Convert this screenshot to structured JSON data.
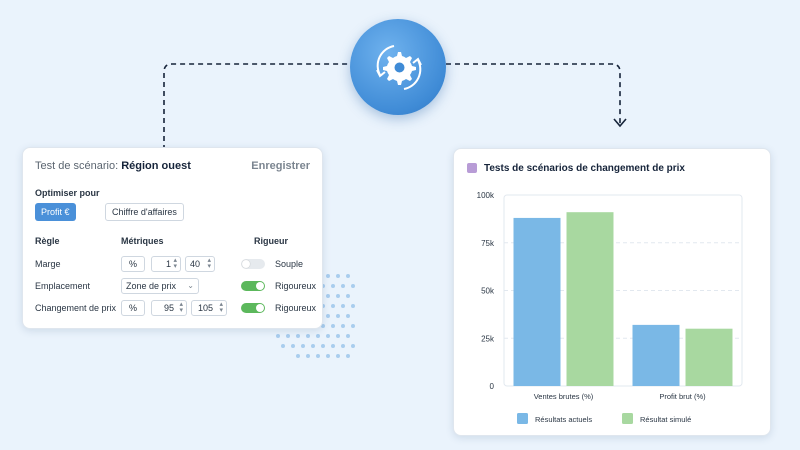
{
  "scenario": {
    "label": "Test de scénario:",
    "name": "Région ouest",
    "save_label": "Enregistrer"
  },
  "optimize": {
    "label": "Optimiser pour",
    "options": [
      {
        "label": "Profit €",
        "selected": true
      },
      {
        "label": "Chiffre d'affaires",
        "selected": false
      }
    ]
  },
  "rules_table": {
    "headers": {
      "rule": "Règle",
      "metrics": "Métriques",
      "rigor": "Rigueur"
    },
    "rows": [
      {
        "rule": "Marge",
        "unit": "%",
        "val1": "1",
        "val2": "40",
        "rigor_on": false,
        "rigor": "Souple"
      },
      {
        "rule": "Emplacement",
        "select": "Zone de prix",
        "rigor_on": true,
        "rigor": "Rigoureux"
      },
      {
        "rule": "Changement de prix",
        "unit": "%",
        "val1": "95",
        "val2": "105",
        "rigor_on": true,
        "rigor": "Rigoureux"
      }
    ]
  },
  "icons": {
    "center": "gear-refresh-icon"
  },
  "colors": {
    "accent": "#4a90d9",
    "current": "#7ab8e6",
    "simulated": "#a8d8a0",
    "toggle_on": "#5cb85c"
  },
  "chart_data": {
    "type": "bar",
    "title": "Tests de scénarios de changement de prix",
    "categories": [
      "Ventes brutes (%)",
      "Profit brut (%)"
    ],
    "series": [
      {
        "name": "Résultats actuels",
        "values": [
          88000,
          32000
        ]
      },
      {
        "name": "Résultat simulé",
        "values": [
          91000,
          30000
        ]
      }
    ],
    "ylim": [
      0,
      100000
    ],
    "yticks": [
      "0",
      "25k",
      "50k",
      "75k",
      "100k"
    ],
    "grid": true,
    "legend": "bottom"
  }
}
